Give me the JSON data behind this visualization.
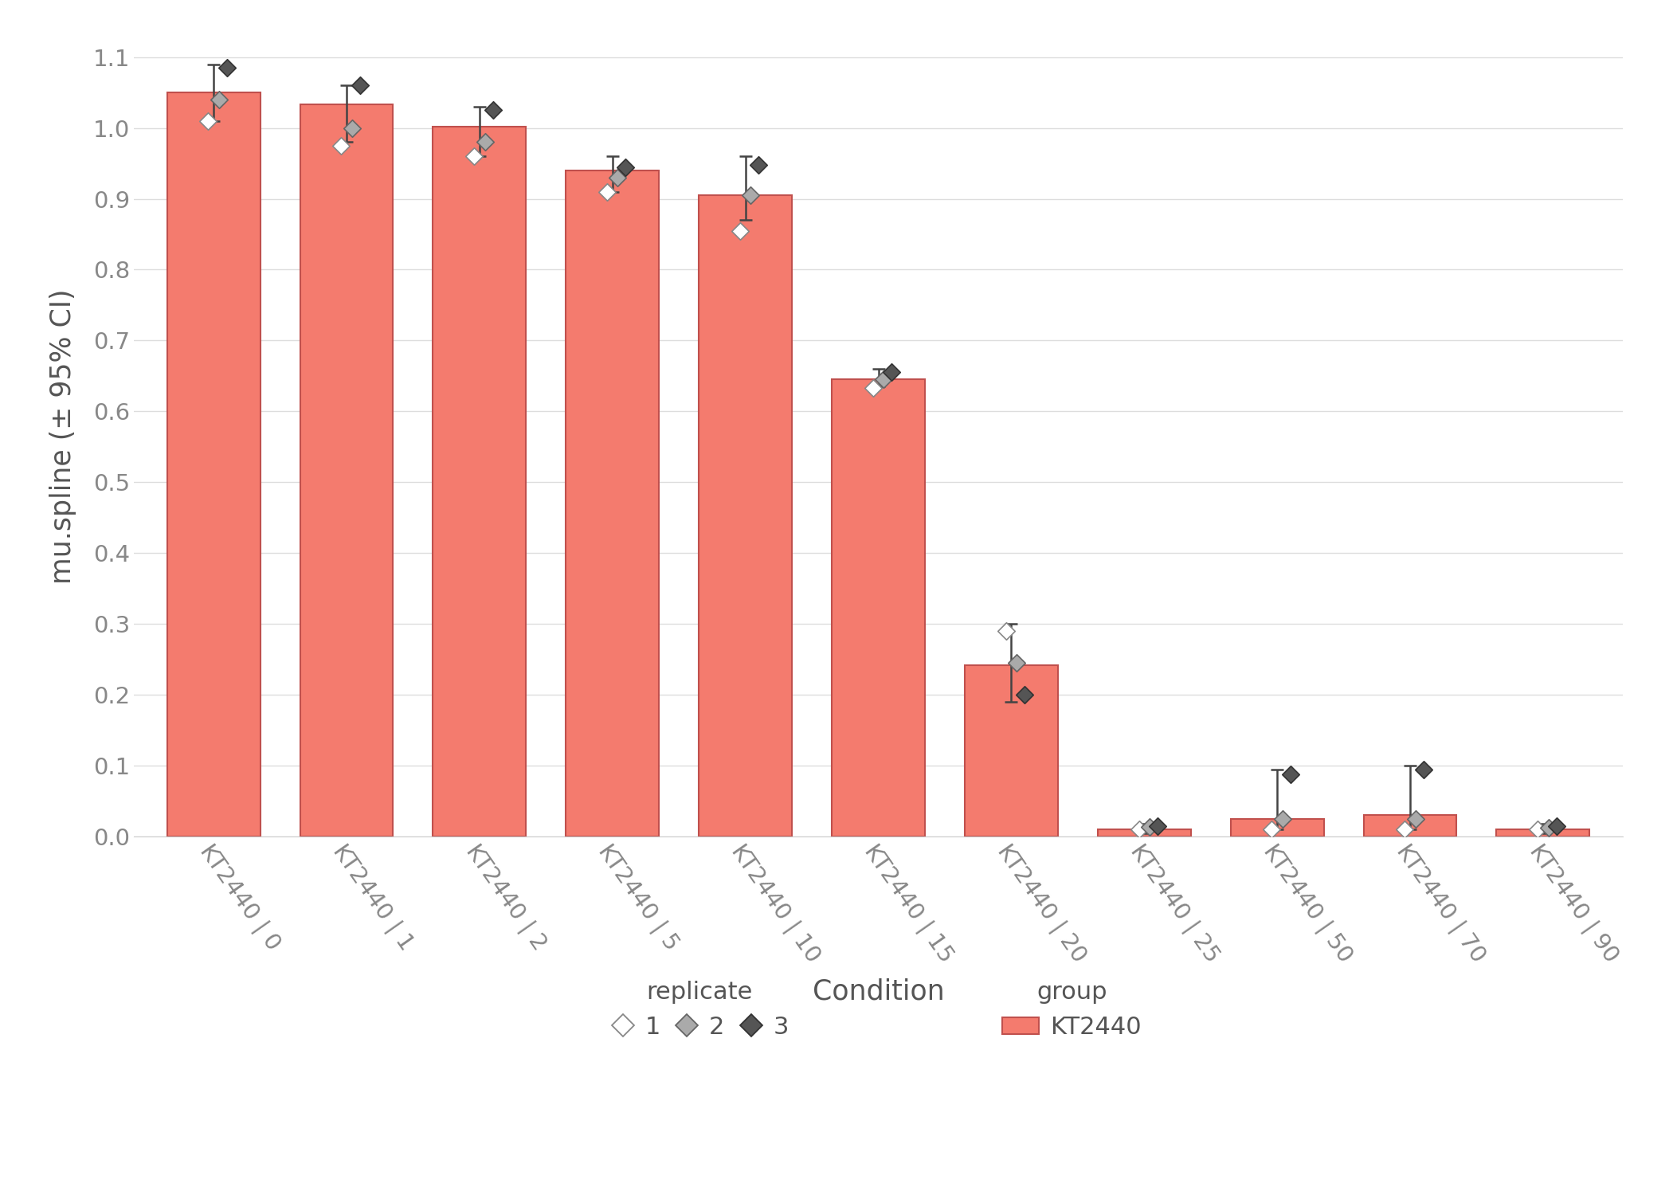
{
  "conditions": [
    "KT2440 | 0",
    "KT2440 | 1",
    "KT2440 | 2",
    "KT2440 | 5",
    "KT2440 | 10",
    "KT2440 | 15",
    "KT2440 | 20",
    "KT2440 | 25",
    "KT2440 | 50",
    "KT2440 | 70",
    "KT2440 | 90"
  ],
  "bar_means": [
    1.05,
    1.033,
    1.002,
    0.94,
    0.905,
    0.645,
    0.242,
    0.01,
    0.025,
    0.03,
    0.01
  ],
  "ci_lower": [
    1.01,
    0.98,
    0.96,
    0.91,
    0.87,
    0.635,
    0.19,
    0.005,
    0.01,
    0.01,
    0.005
  ],
  "ci_upper": [
    1.09,
    1.06,
    1.03,
    0.96,
    0.96,
    0.66,
    0.3,
    0.018,
    0.095,
    0.1,
    0.018
  ],
  "rep1_values": [
    1.01,
    0.975,
    0.96,
    0.91,
    0.855,
    0.633,
    0.29,
    0.01,
    0.01,
    0.01,
    0.01
  ],
  "rep2_values": [
    1.04,
    1.0,
    0.98,
    0.93,
    0.905,
    0.645,
    0.245,
    0.013,
    0.025,
    0.025,
    0.012
  ],
  "rep3_values": [
    1.085,
    1.06,
    1.025,
    0.945,
    0.948,
    0.655,
    0.2,
    0.015,
    0.088,
    0.095,
    0.015
  ],
  "bar_color": "#F47B6E",
  "bar_edge_color": "#C0504D",
  "rep1_color": "#FFFFFF",
  "rep1_edge": "#888888",
  "rep2_color": "#AAAAAA",
  "rep2_edge": "#666666",
  "rep3_color": "#555555",
  "rep3_edge": "#333333",
  "ylabel": "mu.spline (± 95% CI)",
  "xlabel": "Condition",
  "ylim": [
    0.0,
    1.13
  ],
  "yticks": [
    0.0,
    0.1,
    0.2,
    0.3,
    0.4,
    0.5,
    0.6,
    0.7,
    0.8,
    0.9,
    1.0,
    1.1
  ],
  "background_color": "#FFFFFF",
  "grid_color": "#DDDDDD",
  "group_name": "KT2440",
  "axis_label_color": "#555555",
  "tick_label_color": "#888888"
}
